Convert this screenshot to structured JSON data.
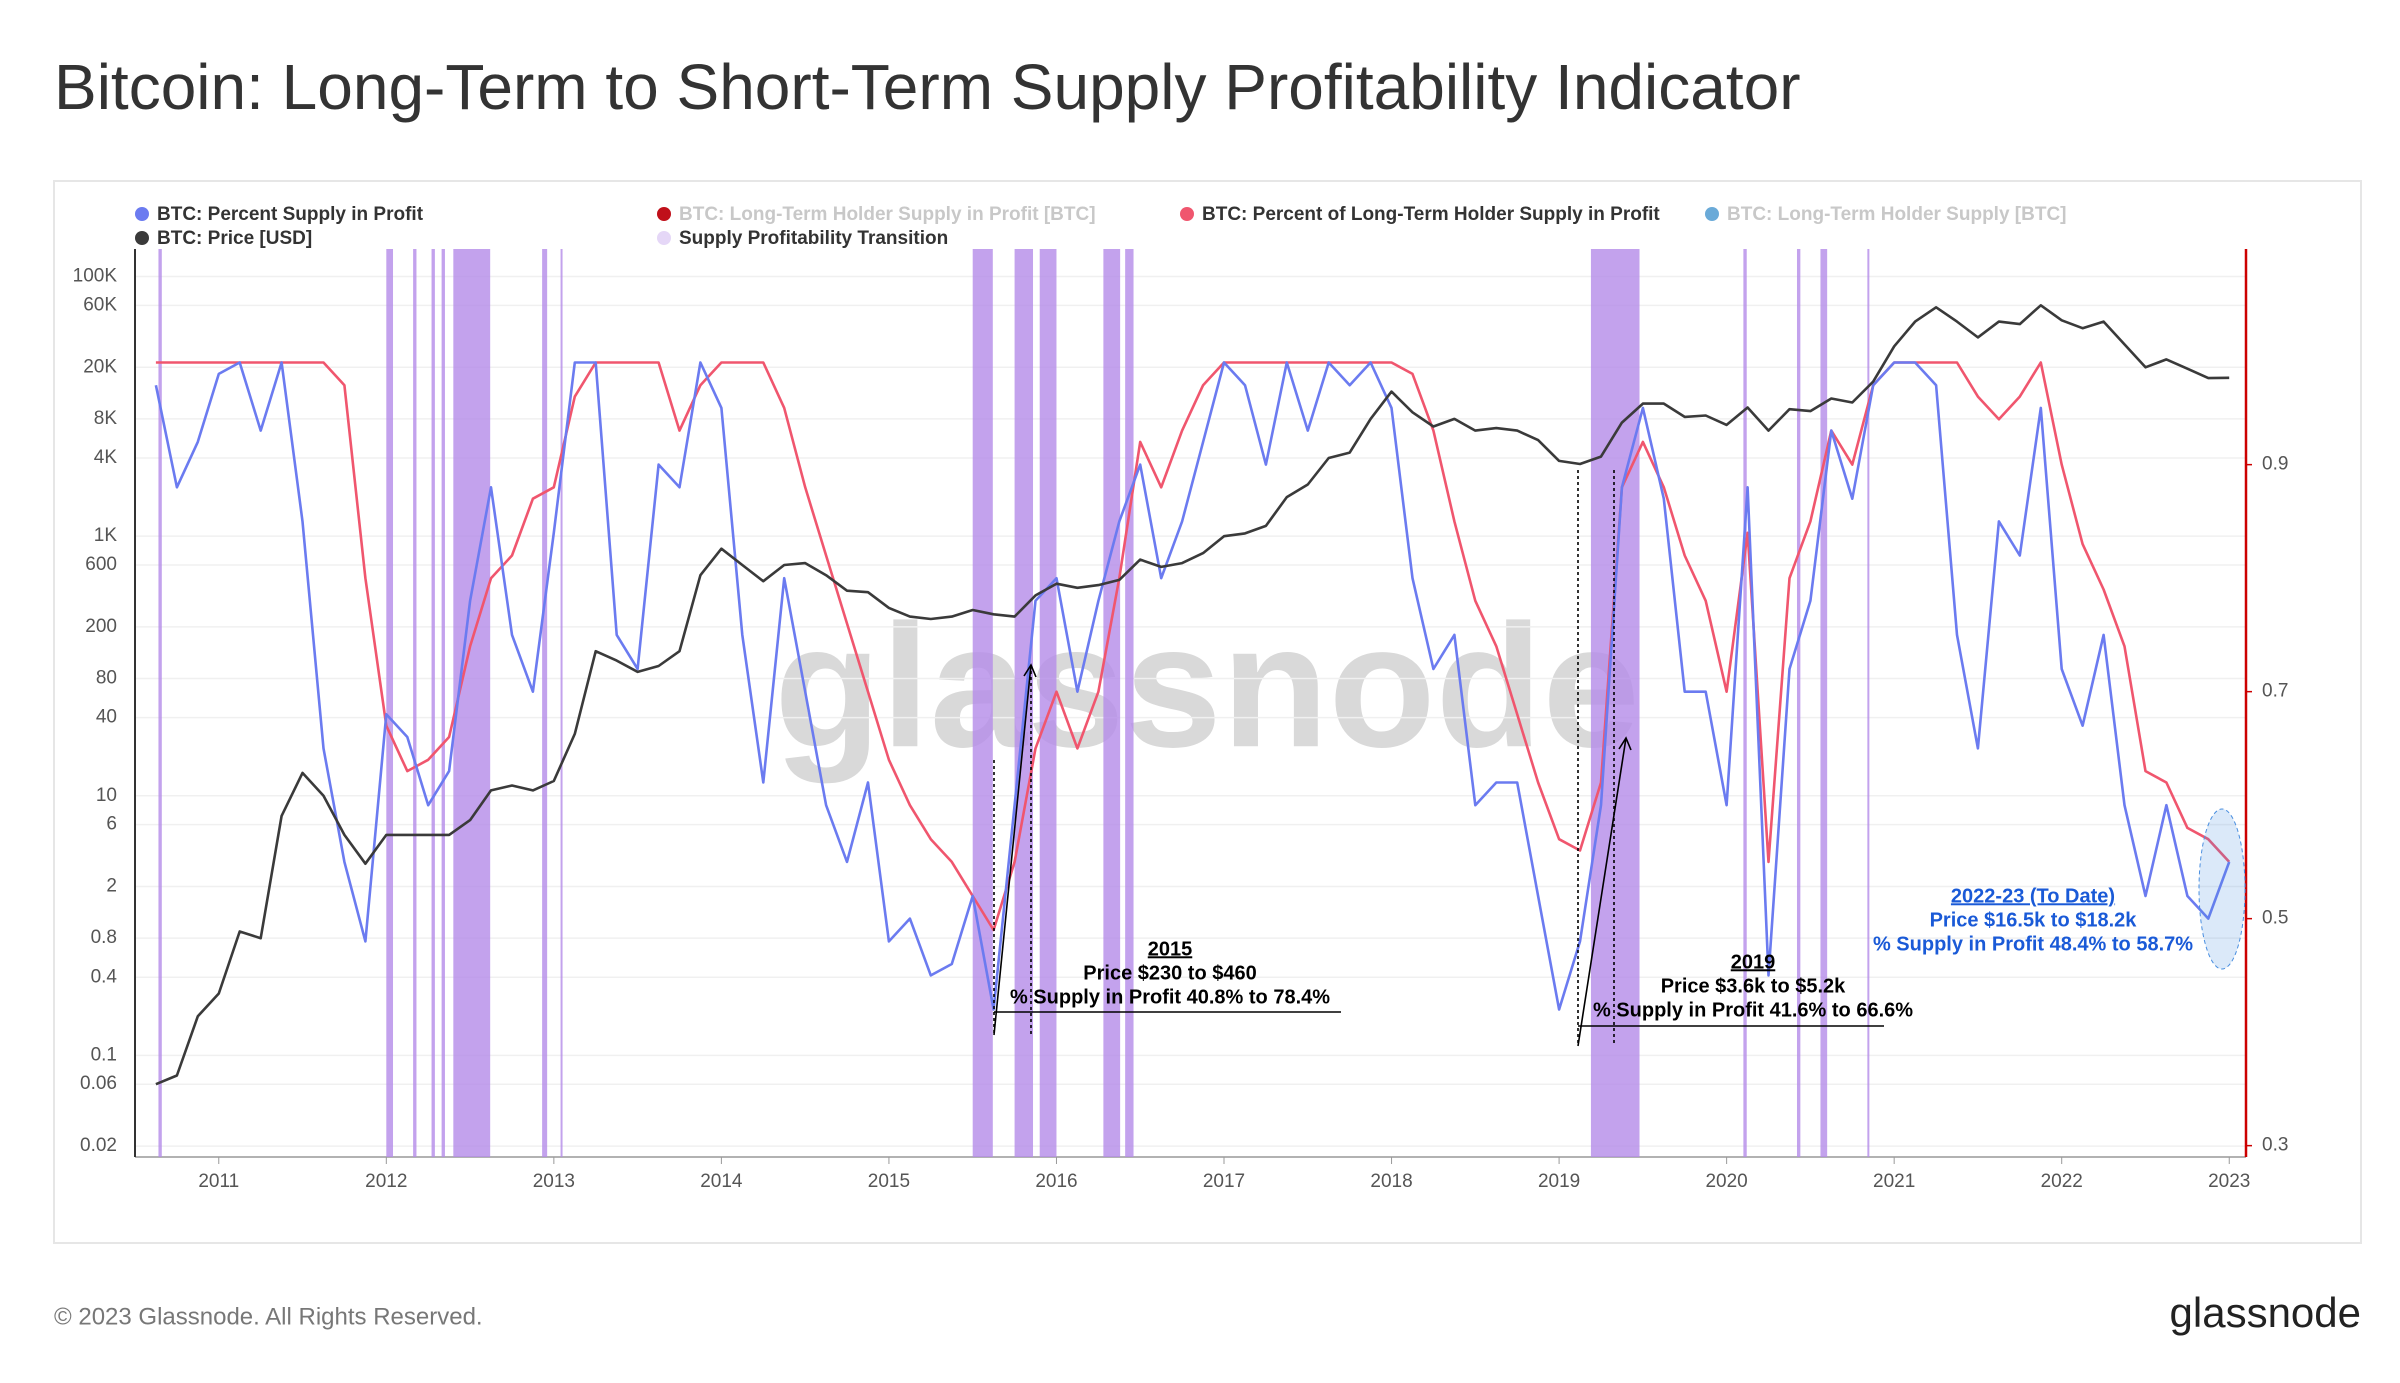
{
  "chart_data": {
    "type": "line",
    "title": "Bitcoin: Long-Term to Short-Term Supply Profitability Indicator",
    "watermark": "glassnode",
    "footer": "© 2023 Glassnode. All Rights Reserved.",
    "logo": "glassnode",
    "x": [
      2010.625,
      2010.75,
      2010.875,
      2011.0,
      2011.125,
      2011.25,
      2011.375,
      2011.5,
      2011.625,
      2011.75,
      2011.875,
      2012.0,
      2012.125,
      2012.25,
      2012.375,
      2012.5,
      2012.625,
      2012.75,
      2012.875,
      2013.0,
      2013.125,
      2013.25,
      2013.375,
      2013.5,
      2013.625,
      2013.75,
      2013.875,
      2014.0,
      2014.125,
      2014.25,
      2014.375,
      2014.5,
      2014.625,
      2014.75,
      2014.875,
      2015.0,
      2015.125,
      2015.25,
      2015.375,
      2015.5,
      2015.625,
      2015.75,
      2015.875,
      2016.0,
      2016.125,
      2016.25,
      2016.375,
      2016.5,
      2016.625,
      2016.75,
      2016.875,
      2017.0,
      2017.125,
      2017.25,
      2017.375,
      2017.5,
      2017.625,
      2017.75,
      2017.875,
      2018.0,
      2018.125,
      2018.25,
      2018.375,
      2018.5,
      2018.625,
      2018.75,
      2018.875,
      2019.0,
      2019.125,
      2019.25,
      2019.375,
      2019.5,
      2019.625,
      2019.75,
      2019.875,
      2020.0,
      2020.125,
      2020.25,
      2020.375,
      2020.5,
      2020.625,
      2020.75,
      2020.875,
      2021.0,
      2021.125,
      2021.25,
      2021.375,
      2021.5,
      2021.625,
      2021.75,
      2021.875,
      2022.0,
      2022.125,
      2022.25,
      2022.375,
      2022.5,
      2022.625,
      2022.75,
      2022.875,
      2023.0
    ],
    "xlim": [
      2010.5,
      2023.1
    ],
    "xticks": [
      2011,
      2012,
      2013,
      2014,
      2015,
      2016,
      2017,
      2018,
      2019,
      2020,
      2021,
      2022,
      2023
    ],
    "ylog": true,
    "ylim": [
      0.0165,
      163000
    ],
    "yticks": [
      0.02,
      0.06,
      0.1,
      0.4,
      0.8,
      2,
      6,
      10,
      40,
      80,
      200,
      600,
      {
        "value": 1000,
        "label": "1K"
      },
      {
        "value": 4000,
        "label": "4K"
      },
      {
        "value": 8000,
        "label": "8K"
      },
      {
        "value": 20000,
        "label": "20K"
      },
      {
        "value": 60000,
        "label": "60K"
      },
      {
        "value": 100000,
        "label": "100K"
      }
    ],
    "y2lim": [
      0.29,
      1.09
    ],
    "y2ticks": [
      0.3,
      0.5,
      0.7,
      0.9
    ],
    "grid": true,
    "series": [
      {
        "name": "BTC: Percent Supply in Profit",
        "color": "#6b7bf0",
        "axis": "y2",
        "values": [
          0.97,
          0.88,
          0.92,
          0.98,
          0.99,
          0.93,
          0.99,
          0.85,
          0.65,
          0.55,
          0.48,
          0.68,
          0.66,
          0.6,
          0.63,
          0.78,
          0.88,
          0.75,
          0.7,
          0.84,
          0.99,
          0.99,
          0.75,
          0.72,
          0.9,
          0.88,
          0.99,
          0.95,
          0.75,
          0.62,
          0.8,
          0.7,
          0.6,
          0.55,
          0.62,
          0.48,
          0.5,
          0.45,
          0.46,
          0.52,
          0.42,
          0.6,
          0.78,
          0.8,
          0.7,
          0.78,
          0.85,
          0.9,
          0.8,
          0.85,
          0.92,
          0.99,
          0.97,
          0.9,
          0.99,
          0.93,
          0.99,
          0.97,
          0.99,
          0.95,
          0.8,
          0.72,
          0.75,
          0.6,
          0.62,
          0.62,
          0.52,
          0.42,
          0.48,
          0.6,
          0.88,
          0.95,
          0.87,
          0.7,
          0.7,
          0.6,
          0.88,
          0.45,
          0.72,
          0.78,
          0.93,
          0.87,
          0.97,
          0.99,
          0.99,
          0.97,
          0.75,
          0.65,
          0.85,
          0.82,
          0.95,
          0.72,
          0.67,
          0.75,
          0.6,
          0.52,
          0.6,
          0.52,
          0.5,
          0.55
        ]
      },
      {
        "name": "BTC: Price [USD]",
        "color": "#3a3a3a",
        "values": [
          0.06,
          0.07,
          0.2,
          0.3,
          0.9,
          0.8,
          7,
          15,
          10,
          5,
          3,
          5,
          5,
          5,
          5,
          6.5,
          11,
          12,
          11,
          13,
          30,
          130,
          110,
          90,
          100,
          130,
          500,
          800,
          600,
          450,
          600,
          620,
          500,
          380,
          370,
          280,
          240,
          230,
          240,
          270,
          250,
          240,
          350,
          430,
          400,
          420,
          460,
          660,
          580,
          620,
          740,
          1000,
          1050,
          1200,
          2000,
          2500,
          4000,
          4400,
          8000,
          13000,
          9000,
          7000,
          8000,
          6500,
          6800,
          6500,
          5500,
          3800,
          3600,
          4100,
          7500,
          10500,
          10500,
          8300,
          8500,
          7200,
          9800,
          6500,
          9500,
          9200,
          11500,
          10700,
          15500,
          29000,
          45000,
          58000,
          45000,
          34000,
          45000,
          43000,
          60000,
          46000,
          40000,
          45000,
          30000,
          20000,
          23000,
          19500,
          16500,
          16600
        ]
      },
      {
        "name": "BTC: Percent of Long-Term Holder Supply in Profit",
        "color": "#f0566e",
        "axis": "y2",
        "values": [
          0.99,
          0.99,
          0.99,
          0.99,
          0.99,
          0.99,
          0.99,
          0.99,
          0.99,
          0.97,
          0.8,
          0.67,
          0.63,
          0.64,
          0.66,
          0.74,
          0.8,
          0.82,
          0.87,
          0.88,
          0.96,
          0.99,
          0.99,
          0.99,
          0.99,
          0.93,
          0.97,
          0.99,
          0.99,
          0.99,
          0.95,
          0.88,
          0.82,
          0.76,
          0.7,
          0.64,
          0.6,
          0.57,
          0.55,
          0.52,
          0.49,
          0.55,
          0.65,
          0.7,
          0.65,
          0.7,
          0.8,
          0.92,
          0.88,
          0.93,
          0.97,
          0.99,
          0.99,
          0.99,
          0.99,
          0.99,
          0.99,
          0.99,
          0.99,
          0.99,
          0.98,
          0.93,
          0.85,
          0.78,
          0.74,
          0.68,
          0.62,
          0.57,
          0.56,
          0.62,
          0.88,
          0.92,
          0.88,
          0.82,
          0.78,
          0.7,
          0.84,
          0.55,
          0.8,
          0.85,
          0.93,
          0.9,
          0.97,
          0.99,
          0.99,
          0.99,
          0.99,
          0.96,
          0.94,
          0.96,
          0.99,
          0.9,
          0.83,
          0.79,
          0.74,
          0.63,
          0.62,
          0.58,
          0.57,
          0.55
        ]
      },
      {
        "name": "Supply Profitability Transition",
        "color": "#b48be8",
        "type": "band",
        "ranges": [
          [
            2010.64,
            2010.66
          ],
          [
            2012.0,
            2012.04
          ],
          [
            2012.16,
            2012.18
          ],
          [
            2012.27,
            2012.29
          ],
          [
            2012.33,
            2012.35
          ],
          [
            2012.4,
            2012.62
          ],
          [
            2012.93,
            2012.96
          ],
          [
            2013.04,
            2013.05
          ],
          [
            2015.5,
            2015.62
          ],
          [
            2015.75,
            2015.86
          ],
          [
            2015.9,
            2016.0
          ],
          [
            2016.28,
            2016.38
          ],
          [
            2016.41,
            2016.46
          ],
          [
            2019.19,
            2019.48
          ],
          [
            2020.1,
            2020.12
          ],
          [
            2020.42,
            2020.44
          ],
          [
            2020.56,
            2020.6
          ],
          [
            2020.84,
            2020.85
          ]
        ]
      }
    ],
    "hidden_series": [
      {
        "name": "BTC: Long-Term Holder Supply in Profit [BTC]",
        "color": "#c0101a"
      },
      {
        "name": "BTC: Long-Term Holder Supply [BTC]",
        "color": "#6aaad8"
      }
    ],
    "annotations": [
      {
        "lines": [
          "2015",
          "Price $230 to $460",
          "% Supply in Profit 40.8% to 78.4%"
        ],
        "color": "#000000"
      },
      {
        "lines": [
          "2019",
          "Price $3.6k to $5.2k",
          "% Supply in Profit 41.6% to 66.6%"
        ],
        "color": "#000000"
      },
      {
        "lines": [
          "2022-23 (To Date)",
          "Price $16.5k to $18.2k",
          "% Supply in Profit 48.4% to 58.7%"
        ],
        "color": "#1a5ad7"
      }
    ]
  }
}
